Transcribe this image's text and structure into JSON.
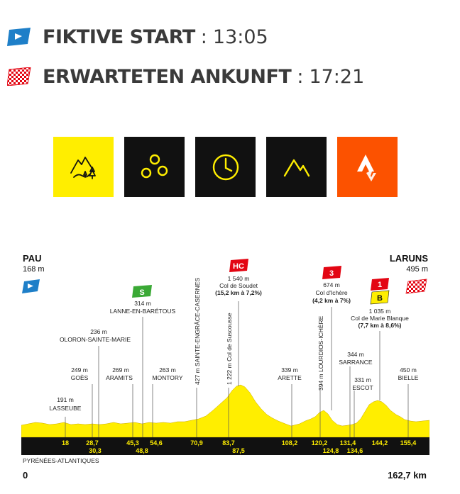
{
  "stage_info": {
    "start_label": "FIKTIVE START",
    "start_sep": ":",
    "start_time": "13:05",
    "finish_label": "ERWARTETEN ANKUNFT",
    "finish_sep": ":",
    "finish_time": "17:21"
  },
  "icons": [
    {
      "name": "mountain-stage-icon",
      "bg": "#ffee00"
    },
    {
      "name": "circles-icon",
      "bg": "#111111"
    },
    {
      "name": "clock-icon",
      "bg": "#111111"
    },
    {
      "name": "peak-icon",
      "bg": "#111111"
    },
    {
      "name": "strava-icon",
      "bg": "#fc5200"
    }
  ],
  "profile": {
    "start": {
      "name": "PAU",
      "alt": "168 m"
    },
    "finish": {
      "name": "LARUNS",
      "alt": "495 m"
    },
    "region": "PYRÉNÉES-ATLANTIQUES",
    "km_start": "0",
    "km_total": "162,7 km",
    "labels": {
      "lasseube_alt": "191 m",
      "lasseube": "LASSEUBE",
      "goes_alt": "249 m",
      "goes": "GOÈS",
      "oloron_alt": "236 m",
      "oloron": "OLORON-SAINTE-MARIE",
      "aramits_alt": "269 m",
      "aramits": "ARAMITS",
      "lanne_alt": "314 m",
      "lanne": "LANNE-EN-BARÉTOUS",
      "montory_alt": "263 m",
      "montory": "MONTORY",
      "sainte_engrace": "427 m SAINTE-ENGRÂCE-CASERNES",
      "suscousse": "1 222 m Col de Suscousse",
      "soudet_alt": "1 540 m",
      "soudet": "Col de Soudet",
      "soudet_grad": "(15,2 km à 7,2%)",
      "arette_alt": "339 m",
      "arette": "ARETTE",
      "lourdios": "394 m LOURDIOS-ICHÈRE",
      "ichere_alt": "674 m",
      "ichere": "Col d'Ichère",
      "ichere_grad": "(4,2 km à 7%)",
      "sarrance_alt": "344 m",
      "sarrance": "SARRANCE",
      "escot_alt": "331 m",
      "escot": "ESCOT",
      "marie_alt": "1 035 m",
      "marie": "Col de Marie Blanque",
      "marie_grad": "(7,7 km à 8,6%)",
      "bielle_alt": "450 m",
      "bielle": "BIELLE"
    },
    "badges": {
      "sprint": "S",
      "hc": "HC",
      "cat3": "3",
      "cat1": "1",
      "bonus": "B"
    },
    "km_top": [
      "18",
      "28,7",
      "45,3",
      "54,6",
      "70,9",
      "83,7",
      "108,2",
      "120,2",
      "131,4",
      "144,2",
      "155,4"
    ],
    "km_bottom": [
      "30,3",
      "48,8",
      "87,5",
      "124,8",
      "134,6"
    ],
    "colors": {
      "fill": "#ffee00",
      "bar": "#111111",
      "sprint": "#3aa935",
      "climb": "#e30613",
      "bonus": "#ffee00",
      "flag_blue": "#1e7fc8",
      "flag_check": "#e30613"
    }
  }
}
